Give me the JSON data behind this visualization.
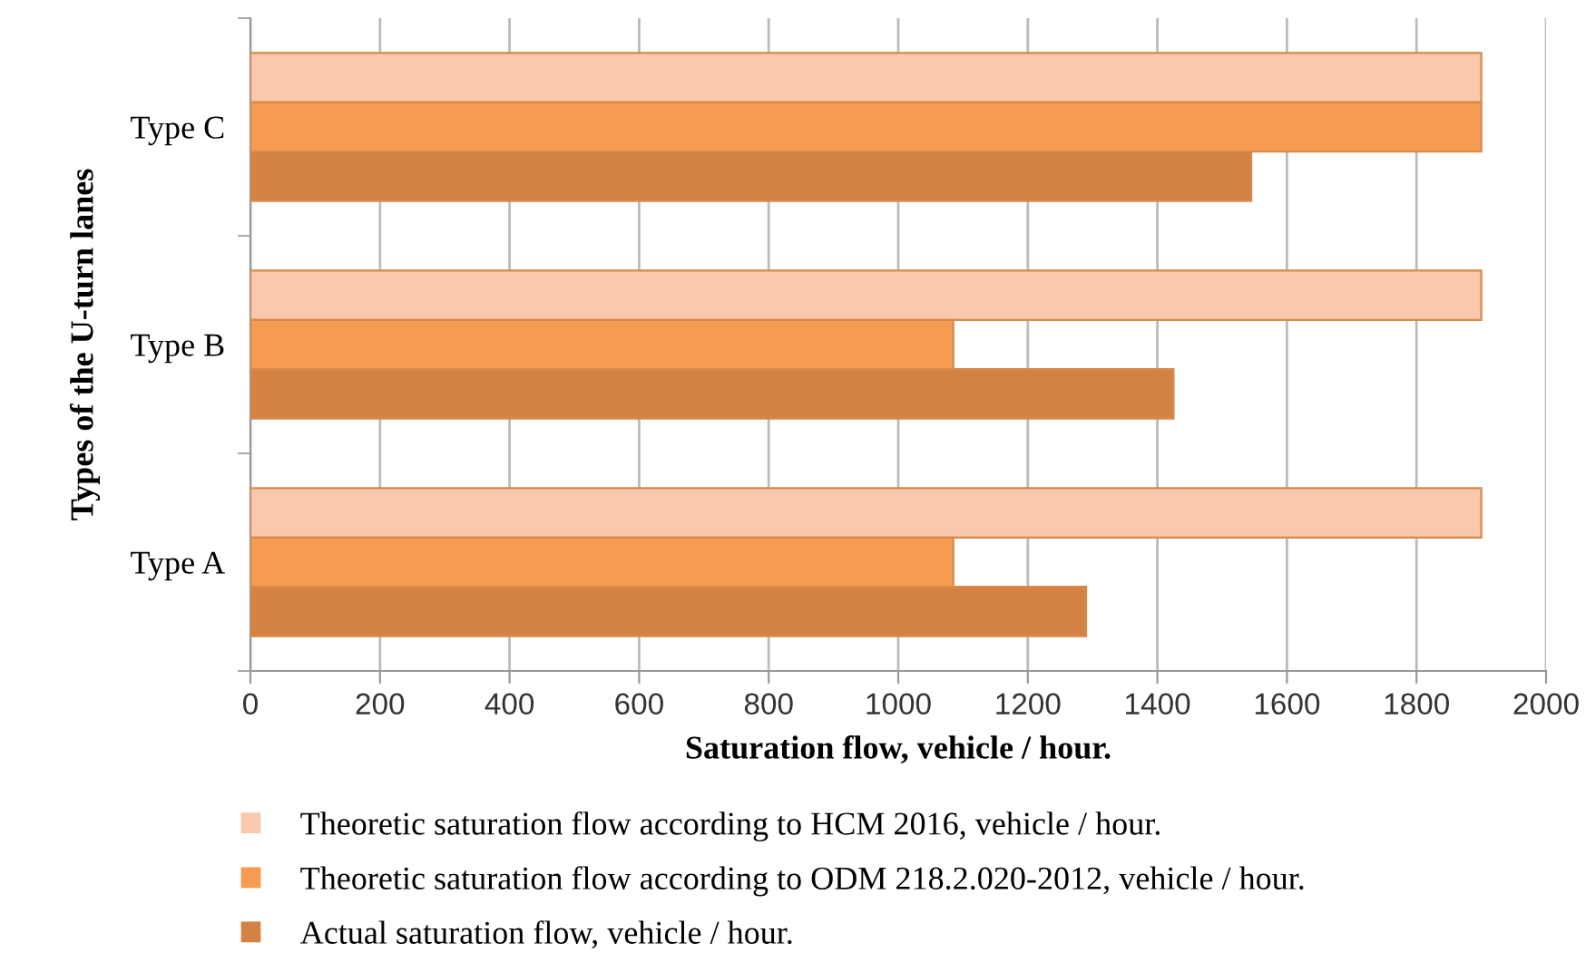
{
  "chart_data": {
    "type": "bar",
    "orientation": "horizontal",
    "categories": [
      "Type C",
      "Type B",
      "Type A"
    ],
    "series": [
      {
        "name": "Theoretic saturation flow according to HCM 2016, vehicle / hour.",
        "color": "#f9c8ad",
        "values": [
          1900,
          1900,
          1900
        ]
      },
      {
        "name": "Theoretic saturation flow according to ODM 218.2.020-2012, vehicle / hour.",
        "color": "#f59b52",
        "values": [
          1900,
          1085,
          1085
        ]
      },
      {
        "name": "Actual saturation flow, vehicle / hour.",
        "color": "#d48244",
        "values": [
          1545,
          1425,
          1290
        ]
      }
    ],
    "xlabel": "Saturation flow, vehicle / hour.",
    "ylabel": "Types of the U-turn lanes",
    "xlim": [
      0,
      2000
    ],
    "xticks": [
      0,
      200,
      400,
      600,
      800,
      1000,
      1200,
      1400,
      1600,
      1800,
      2000
    ],
    "grid": "x",
    "legend": "bottom"
  }
}
